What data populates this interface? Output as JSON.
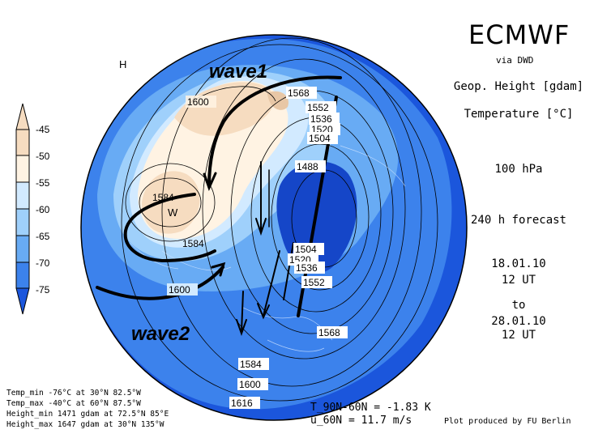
{
  "title": "ECMWF",
  "subtitle": "via DWD",
  "fields": [
    "Geop. Height [gdam]",
    "Temperature [°C]"
  ],
  "level": "100 hPa",
  "forecast": "240 h forecast",
  "init_date": "18.01.10",
  "init_time": "12 UT",
  "to_label": "to",
  "valid_date": "28.01.10",
  "valid_time": "12 UT",
  "colorbar": {
    "ticks": [
      "-45",
      "-50",
      "-55",
      "-60",
      "-65",
      "-70",
      "-75"
    ],
    "colors": [
      "#f6dcc0",
      "#fff3e3",
      "#d2eaff",
      "#9fd0fb",
      "#68abf4",
      "#3c82ec",
      "#1b56dc"
    ]
  },
  "stats": {
    "temp_min": "Temp_min -76°C at 30°N 82.5°W",
    "temp_max": "Temp_max -40°C at 60°N 87.5°W",
    "height_min": "Height_min 1471 gdam at 72.5°N 85°E",
    "height_max": "Height_max 1647 gdam at 30°N 135°W"
  },
  "mean_t": "T_90N-60N = -1.83 K",
  "mean_u": "u_60N = 11.7 m/s",
  "credit": "Plot produced by FU Berlin",
  "annotations": {
    "wave1": "wave1",
    "wave2": "wave2"
  },
  "markers": {
    "high": "H",
    "warm": "W"
  },
  "contour_labels": [
    "1600",
    "1568",
    "1552",
    "1536",
    "1520",
    "1504",
    "1488",
    "1584",
    "1584",
    "1504",
    "1520",
    "1536",
    "1552",
    "1600",
    "1568",
    "1584",
    "1600",
    "1616"
  ]
}
